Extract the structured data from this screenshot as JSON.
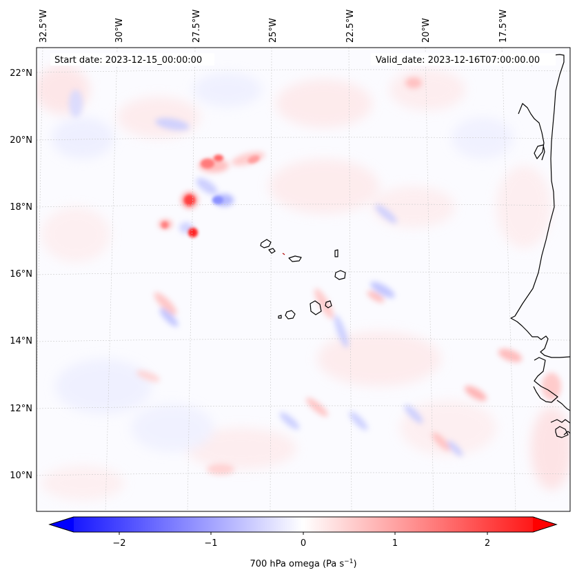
{
  "header": {
    "start_date": "Start date: 2023-12-15_00:00:00",
    "valid_date": "Valid_date: 2023-12-16T07:00:00.00"
  },
  "map": {
    "longitude_labels": [
      "32.5°W",
      "30°W",
      "27.5°W",
      "25°W",
      "22.5°W",
      "20°W",
      "17.5°W"
    ],
    "latitude_labels": [
      "22°N",
      "20°N",
      "18°N",
      "16°N",
      "14°N",
      "12°N",
      "10°N"
    ],
    "gridlines": true,
    "coastline_color": "#000000"
  },
  "colorbar": {
    "ticks": [
      "−2",
      "−1",
      "0",
      "1",
      "2"
    ],
    "label_main": "700 hPa omega (Pa s",
    "label_sup": "−1",
    "label_close": ")",
    "colormap": [
      "#0000ff",
      "#ffffff",
      "#ff0000"
    ],
    "extend": "both"
  }
}
